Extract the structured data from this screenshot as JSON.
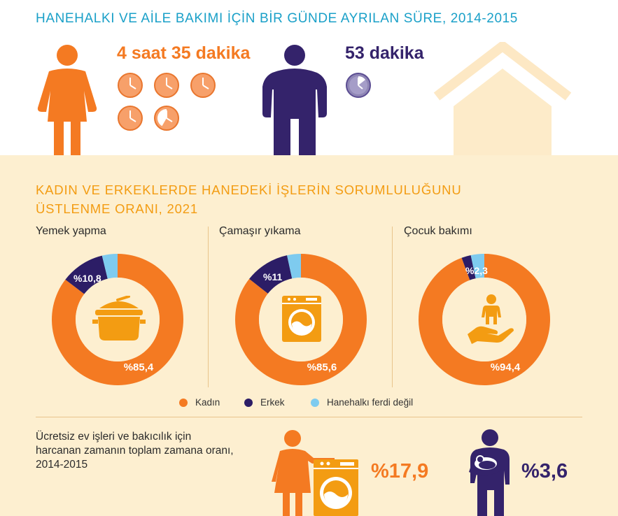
{
  "header": {
    "title": "HANEHALKI VE AİLE BAKIMI İÇİN BİR GÜNDE AYRILAN SÜRE, 2014-2015",
    "women_time": "4 saat 35 dakika",
    "men_time": "53 dakika"
  },
  "section": {
    "title_line1": "KADIN VE ERKEKLERDE HANEDEKİ İŞLERİN SORUMLULUĞUNU",
    "title_line2": "ÜSTLENME ORANI, 2021"
  },
  "chart_data": [
    {
      "type": "pie",
      "title": "Yemek yapma",
      "categories": [
        "Kadın",
        "Erkek",
        "Hanehalkı ferdi değil"
      ],
      "values": [
        85.4,
        10.8,
        3.8
      ],
      "labels": [
        "%85,4",
        "%10,8",
        ""
      ]
    },
    {
      "type": "pie",
      "title": "Çamaşır yıkama",
      "categories": [
        "Kadın",
        "Erkek",
        "Hanehalkı ferdi değil"
      ],
      "values": [
        85.6,
        11.0,
        3.4
      ],
      "labels": [
        "%85,6",
        "%11",
        ""
      ]
    },
    {
      "type": "pie",
      "title": "Çocuk bakımı",
      "categories": [
        "Kadın",
        "Erkek",
        "Hanehalkı ferdi değil"
      ],
      "values": [
        94.4,
        2.3,
        3.3
      ],
      "labels": [
        "%94,4",
        "%2,3",
        ""
      ]
    }
  ],
  "legend": [
    {
      "label": "Kadın",
      "color": "#f47a22"
    },
    {
      "label": "Erkek",
      "color": "#2c1d66"
    },
    {
      "label": "Hanehalkı ferdi değil",
      "color": "#7ecbef"
    }
  ],
  "footer": {
    "note": "Ücretsiz ev işleri ve bakıcılık için harcanan zamanın toplam zamana oranı, 2014-2015",
    "women_pct": "%17,9",
    "men_pct": "%3,6"
  },
  "colors": {
    "woman": "#f47a22",
    "man": "#34236b",
    "other": "#7ecbef",
    "accent_title": "#1aa0c8",
    "section_title": "#f39c12",
    "background": "#fdefd0"
  },
  "icons": [
    "woman-icon",
    "man-icon",
    "clock-icon",
    "house-icon",
    "pot-icon",
    "washing-machine-icon",
    "child-care-icon",
    "woman-laundry-icon",
    "father-baby-icon"
  ]
}
